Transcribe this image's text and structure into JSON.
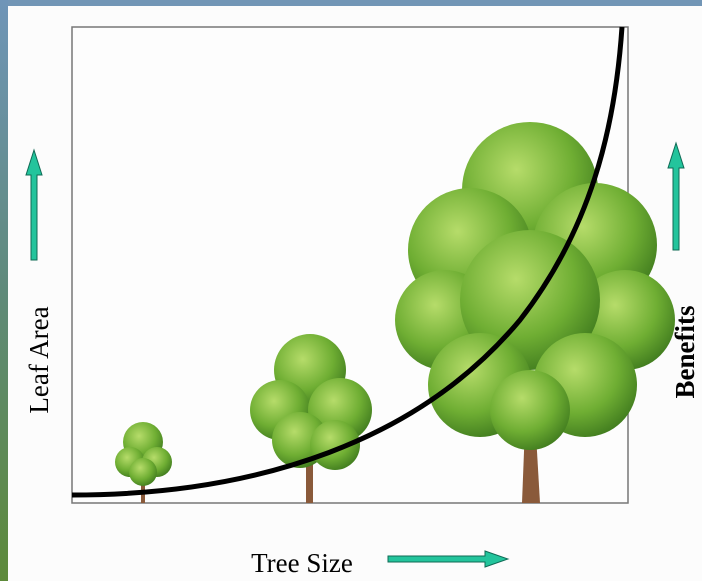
{
  "axes": {
    "y_label": "Leaf Area",
    "y2_label": "Benefits",
    "x_label": "Tree Size"
  }
}
